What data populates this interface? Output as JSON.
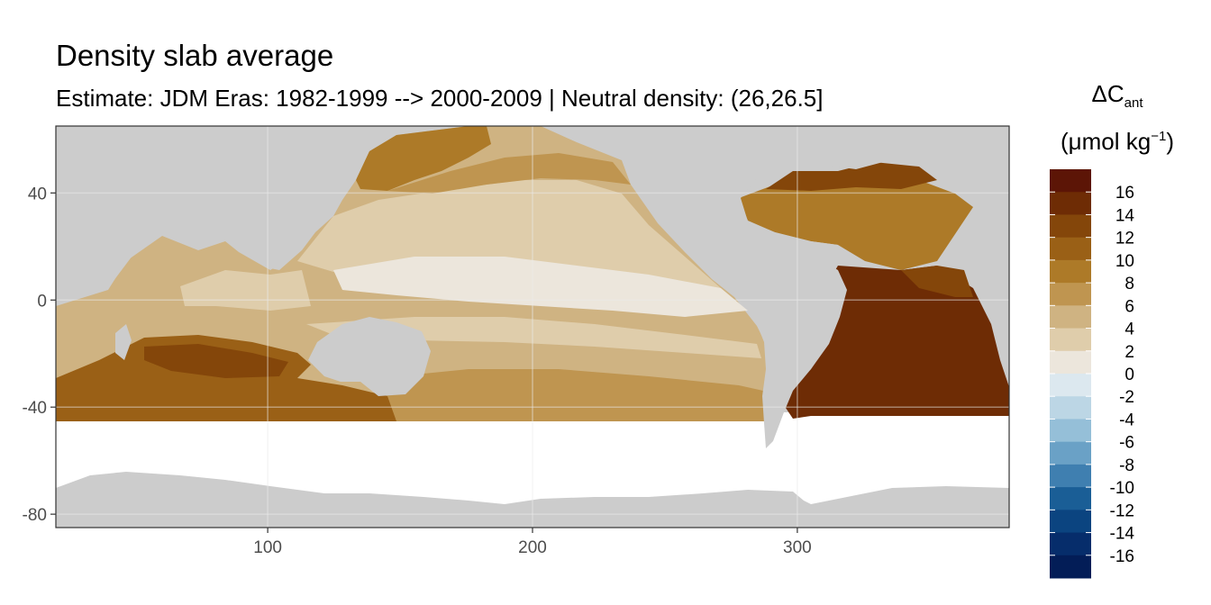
{
  "title": "Density slab average",
  "subtitle": "Estimate: JDM Eras: 1982-1999 --> 2000-2009 | Neutral density: (26,26.5]",
  "legend": {
    "symbol": "ΔC",
    "symbol_subscript": "ant",
    "unit_prefix": "(μmol kg",
    "unit_superscript": "−1",
    "unit_suffix": ")",
    "labels": [
      "16",
      "14",
      "12",
      "10",
      "8",
      "6",
      "4",
      "2",
      "0",
      "-2",
      "-4",
      "-6",
      "-8",
      "-10",
      "-12",
      "-14",
      "-16"
    ],
    "colors": [
      "#5c1506",
      "#6e2c05",
      "#84460a",
      "#9a6016",
      "#ad7a28",
      "#bf9550",
      "#cfb382",
      "#dfcdab",
      "#ece6dc",
      "#dce8ef",
      "#bcd6e5",
      "#95bfd8",
      "#6aa1c6",
      "#3f7fb0",
      "#1a5e96",
      "#0b4480",
      "#062d6b",
      "#031d57"
    ]
  },
  "map": {
    "colors": {
      "land": "#cccccc",
      "nodata": "#ffffff",
      "panel_border": "#333333",
      "grid": "#ebebeb"
    },
    "x_ticks": [
      "100",
      "200",
      "300"
    ],
    "y_ticks": [
      "40",
      "0",
      "-40",
      "-80"
    ],
    "x_tick_values": [
      100,
      200,
      300
    ],
    "y_tick_values": [
      40,
      0,
      -40,
      -80
    ],
    "xlim": [
      20,
      380
    ],
    "ylim": [
      -85,
      65
    ]
  }
}
